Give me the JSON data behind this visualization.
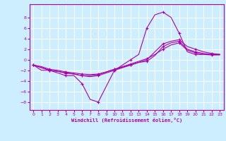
{
  "xlabel": "Windchill (Refroidissement éolien,°C)",
  "bg_color": "#cceeff",
  "grid_color": "#ffffff",
  "line_color": "#aa00aa",
  "xlim": [
    -0.5,
    23.5
  ],
  "ylim": [
    -9.5,
    10.5
  ],
  "yticks": [
    -8,
    -6,
    -4,
    -2,
    0,
    2,
    4,
    6,
    8
  ],
  "xticks": [
    0,
    1,
    2,
    3,
    4,
    5,
    6,
    7,
    8,
    9,
    10,
    11,
    12,
    13,
    14,
    15,
    16,
    17,
    18,
    19,
    20,
    21,
    22,
    23
  ],
  "curve1_x": [
    0,
    1,
    2,
    3,
    4,
    5,
    6,
    7,
    8,
    9,
    10,
    11,
    12,
    13,
    14,
    15,
    16,
    17,
    18,
    19,
    20,
    21,
    22,
    23
  ],
  "curve1_y": [
    -1,
    -2,
    -2,
    -2.5,
    -3,
    -3,
    -4.5,
    -7.5,
    -8,
    -5,
    -2,
    -1,
    0,
    1,
    6,
    8.5,
    9,
    8,
    5,
    1.5,
    1,
    1,
    1,
    1
  ],
  "curve2_x": [
    0,
    1,
    2,
    3,
    4,
    5,
    6,
    7,
    8,
    9,
    10,
    11,
    12,
    13,
    14,
    15,
    16,
    17,
    18,
    19,
    20,
    21,
    22,
    23
  ],
  "curve2_y": [
    -1,
    -1.5,
    -2,
    -2.2,
    -2.5,
    -2.7,
    -3.0,
    -3.2,
    -3.0,
    -2.5,
    -2.0,
    -1.5,
    -1.0,
    -0.5,
    0,
    1.5,
    3.0,
    3.5,
    3.8,
    2.5,
    2.0,
    1.5,
    1.2,
    1.0
  ],
  "curve3_x": [
    0,
    1,
    2,
    3,
    4,
    5,
    6,
    7,
    8,
    9,
    10,
    11,
    12,
    13,
    14,
    15,
    16,
    17,
    18,
    19,
    20,
    21,
    22,
    23
  ],
  "curve3_y": [
    -1,
    -1.5,
    -2,
    -2.2,
    -2.5,
    -2.7,
    -3.0,
    -3.0,
    -2.8,
    -2.3,
    -1.8,
    -1.4,
    -1.0,
    -0.5,
    -0.3,
    0.8,
    2.5,
    3.2,
    3.5,
    2.0,
    1.5,
    1.2,
    1.0,
    1.0
  ],
  "curve4_x": [
    0,
    1,
    2,
    3,
    4,
    5,
    6,
    7,
    8,
    9,
    10,
    11,
    12,
    13,
    14,
    15,
    16,
    17,
    18,
    19,
    20,
    21,
    22,
    23
  ],
  "curve4_y": [
    -1,
    -1.3,
    -1.8,
    -2.0,
    -2.3,
    -2.5,
    -2.7,
    -2.8,
    -2.7,
    -2.3,
    -1.8,
    -1.3,
    -0.8,
    -0.3,
    0.2,
    1.0,
    2.0,
    2.8,
    3.2,
    1.8,
    1.3,
    1.0,
    0.9,
    0.9
  ]
}
